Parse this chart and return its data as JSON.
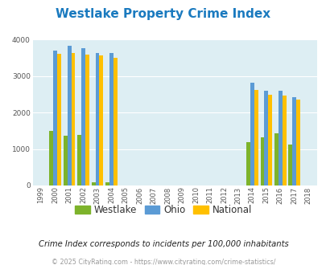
{
  "title": "Westlake Property Crime Index",
  "years": [
    "1999",
    "2000",
    "2001",
    "2002",
    "2003",
    "2004",
    "2005",
    "2006",
    "2007",
    "2008",
    "2009",
    "2010",
    "2011",
    "2012",
    "2013",
    "2014",
    "2015",
    "2016",
    "2017",
    "2018"
  ],
  "westlake": [
    0,
    1490,
    1360,
    1390,
    80,
    90,
    0,
    0,
    0,
    0,
    0,
    0,
    0,
    0,
    0,
    1190,
    1315,
    1430,
    1130,
    0
  ],
  "ohio": [
    0,
    3700,
    3840,
    3760,
    3640,
    3640,
    0,
    0,
    0,
    0,
    0,
    0,
    0,
    0,
    0,
    2810,
    2600,
    2590,
    2420,
    0
  ],
  "national": [
    0,
    3620,
    3640,
    3600,
    3580,
    3510,
    0,
    0,
    0,
    0,
    0,
    0,
    0,
    0,
    0,
    2620,
    2500,
    2460,
    2360,
    0
  ],
  "westlake_color": "#7db32b",
  "ohio_color": "#5b9bd5",
  "national_color": "#ffc000",
  "bg_color": "#ddeef3",
  "grid_color": "#c8dde3",
  "ylim": [
    0,
    4000
  ],
  "yticks": [
    0,
    1000,
    2000,
    3000,
    4000
  ],
  "subtitle": "Crime Index corresponds to incidents per 100,000 inhabitants",
  "footer": "© 2025 CityRating.com - https://www.cityrating.com/crime-statistics/",
  "legend_labels": [
    "Westlake",
    "Ohio",
    "National"
  ],
  "bar_width": 0.28
}
